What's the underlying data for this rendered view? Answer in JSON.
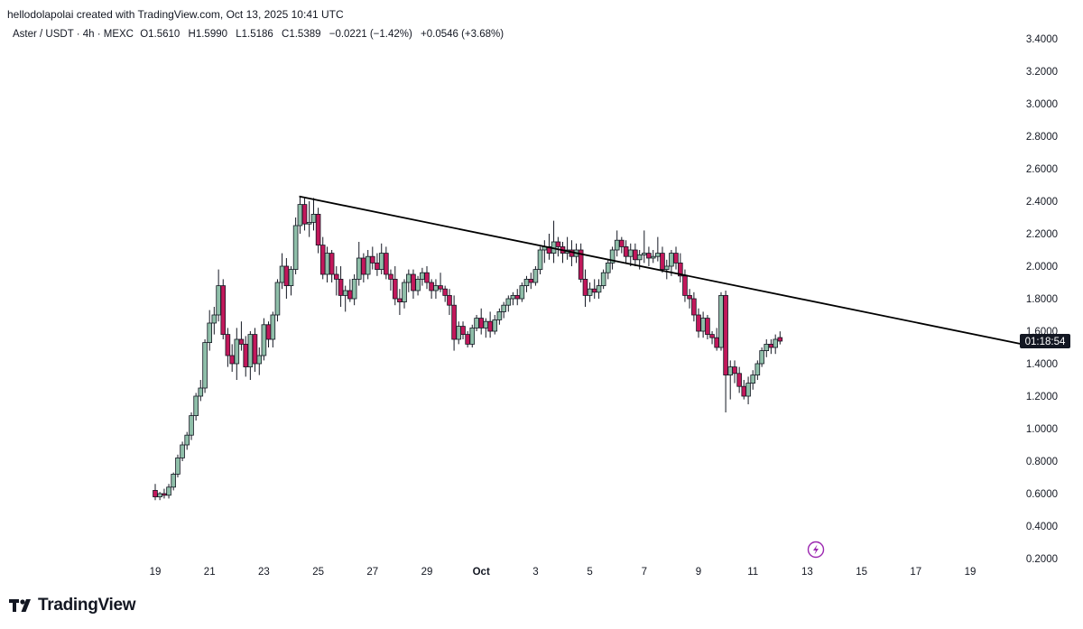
{
  "header": {
    "credit": "hellodolapolai created with TradingView.com, Oct 13, 2025 10:41 UTC"
  },
  "legend": {
    "symbol": "Aster / USDT · 4h · MEXC",
    "open_label": "O",
    "open": "1.5610",
    "high_label": "H",
    "high": "1.5990",
    "low_label": "L",
    "low": "1.5186",
    "close_label": "C",
    "close": "1.5389",
    "change": "−0.0221 (−1.42%)",
    "change2": "+0.0546 (+3.68%)"
  },
  "brand": {
    "name": "TradingView"
  },
  "countdown": "01:18:54",
  "chart_data": {
    "type": "candlestick",
    "interval": "4h",
    "ylim": [
      0.2,
      3.5
    ],
    "y_ticks": [
      "3.4000",
      "3.2000",
      "3.0000",
      "2.8000",
      "2.6000",
      "2.4000",
      "2.2000",
      "2.0000",
      "1.8000",
      "1.6000",
      "1.4000",
      "1.2000",
      "1.0000",
      "0.8000",
      "0.6000",
      "0.4000",
      "0.2000"
    ],
    "x_ticks": [
      {
        "label": "19",
        "day": 19
      },
      {
        "label": "21",
        "day": 21
      },
      {
        "label": "23",
        "day": 23
      },
      {
        "label": "25",
        "day": 25
      },
      {
        "label": "27",
        "day": 27
      },
      {
        "label": "29",
        "day": 29
      },
      {
        "label": "Oct",
        "day": 31,
        "bold": true
      },
      {
        "label": "3",
        "day": 33
      },
      {
        "label": "5",
        "day": 35
      },
      {
        "label": "7",
        "day": 37
      },
      {
        "label": "9",
        "day": 39
      },
      {
        "label": "11",
        "day": 41
      },
      {
        "label": "13",
        "day": 43
      },
      {
        "label": "15",
        "day": 45
      },
      {
        "label": "17",
        "day": 47
      },
      {
        "label": "19",
        "day": 49
      }
    ],
    "colors": {
      "up": "#8fbfa9",
      "down": "#c2185b",
      "wick": "#131722",
      "trend": "#000000"
    },
    "trendline": [
      {
        "day": 24.3,
        "price": 2.43
      },
      {
        "day": 51.5,
        "price": 1.5
      }
    ],
    "candles": [
      {
        "day": 19.0,
        "o": 0.62,
        "h": 0.66,
        "l": 0.56,
        "c": 0.58
      },
      {
        "day": 19.17,
        "o": 0.58,
        "h": 0.61,
        "l": 0.56,
        "c": 0.6
      },
      {
        "day": 19.33,
        "o": 0.6,
        "h": 0.63,
        "l": 0.57,
        "c": 0.59
      },
      {
        "day": 19.5,
        "o": 0.59,
        "h": 0.66,
        "l": 0.57,
        "c": 0.64
      },
      {
        "day": 19.67,
        "o": 0.64,
        "h": 0.73,
        "l": 0.62,
        "c": 0.72
      },
      {
        "day": 19.83,
        "o": 0.72,
        "h": 0.84,
        "l": 0.7,
        "c": 0.82
      },
      {
        "day": 20.0,
        "o": 0.82,
        "h": 0.92,
        "l": 0.8,
        "c": 0.9
      },
      {
        "day": 20.17,
        "o": 0.9,
        "h": 0.98,
        "l": 0.87,
        "c": 0.96
      },
      {
        "day": 20.33,
        "o": 0.96,
        "h": 1.1,
        "l": 0.93,
        "c": 1.08
      },
      {
        "day": 20.5,
        "o": 1.08,
        "h": 1.22,
        "l": 1.05,
        "c": 1.2
      },
      {
        "day": 20.67,
        "o": 1.2,
        "h": 1.3,
        "l": 1.17,
        "c": 1.25
      },
      {
        "day": 20.83,
        "o": 1.25,
        "h": 1.55,
        "l": 1.22,
        "c": 1.53
      },
      {
        "day": 21.0,
        "o": 1.53,
        "h": 1.73,
        "l": 1.48,
        "c": 1.65
      },
      {
        "day": 21.17,
        "o": 1.65,
        "h": 1.75,
        "l": 1.58,
        "c": 1.7
      },
      {
        "day": 21.33,
        "o": 1.7,
        "h": 1.98,
        "l": 1.66,
        "c": 1.88
      },
      {
        "day": 21.5,
        "o": 1.88,
        "h": 1.92,
        "l": 1.55,
        "c": 1.58
      },
      {
        "day": 21.67,
        "o": 1.58,
        "h": 1.62,
        "l": 1.38,
        "c": 1.45
      },
      {
        "day": 21.83,
        "o": 1.45,
        "h": 1.52,
        "l": 1.35,
        "c": 1.4
      },
      {
        "day": 22.0,
        "o": 1.4,
        "h": 1.62,
        "l": 1.3,
        "c": 1.55
      },
      {
        "day": 22.17,
        "o": 1.55,
        "h": 1.66,
        "l": 1.48,
        "c": 1.52
      },
      {
        "day": 22.33,
        "o": 1.52,
        "h": 1.57,
        "l": 1.32,
        "c": 1.38
      },
      {
        "day": 22.5,
        "o": 1.38,
        "h": 1.6,
        "l": 1.3,
        "c": 1.58
      },
      {
        "day": 22.67,
        "o": 1.58,
        "h": 1.62,
        "l": 1.35,
        "c": 1.4
      },
      {
        "day": 22.83,
        "o": 1.4,
        "h": 1.5,
        "l": 1.33,
        "c": 1.45
      },
      {
        "day": 23.0,
        "o": 1.45,
        "h": 1.68,
        "l": 1.42,
        "c": 1.64
      },
      {
        "day": 23.17,
        "o": 1.64,
        "h": 1.66,
        "l": 1.5,
        "c": 1.55
      },
      {
        "day": 23.33,
        "o": 1.55,
        "h": 1.72,
        "l": 1.5,
        "c": 1.7
      },
      {
        "day": 23.5,
        "o": 1.7,
        "h": 1.92,
        "l": 1.66,
        "c": 1.9
      },
      {
        "day": 23.67,
        "o": 1.9,
        "h": 2.08,
        "l": 1.86,
        "c": 2.0
      },
      {
        "day": 23.83,
        "o": 2.0,
        "h": 2.05,
        "l": 1.8,
        "c": 1.88
      },
      {
        "day": 24.0,
        "o": 1.88,
        "h": 2.0,
        "l": 1.82,
        "c": 1.98
      },
      {
        "day": 24.17,
        "o": 1.98,
        "h": 2.3,
        "l": 1.95,
        "c": 2.25
      },
      {
        "day": 24.33,
        "o": 2.25,
        "h": 2.43,
        "l": 2.2,
        "c": 2.38
      },
      {
        "day": 24.5,
        "o": 2.38,
        "h": 2.42,
        "l": 2.22,
        "c": 2.26
      },
      {
        "day": 24.67,
        "o": 2.26,
        "h": 2.4,
        "l": 2.18,
        "c": 2.27
      },
      {
        "day": 24.83,
        "o": 2.27,
        "h": 2.42,
        "l": 2.22,
        "c": 2.32
      },
      {
        "day": 25.0,
        "o": 2.32,
        "h": 2.36,
        "l": 2.08,
        "c": 2.13
      },
      {
        "day": 25.17,
        "o": 2.13,
        "h": 2.18,
        "l": 1.92,
        "c": 1.95
      },
      {
        "day": 25.33,
        "o": 1.95,
        "h": 2.12,
        "l": 1.9,
        "c": 2.08
      },
      {
        "day": 25.5,
        "o": 2.08,
        "h": 2.1,
        "l": 1.9,
        "c": 1.95
      },
      {
        "day": 25.67,
        "o": 1.95,
        "h": 2.0,
        "l": 1.82,
        "c": 1.92
      },
      {
        "day": 25.83,
        "o": 1.92,
        "h": 2.0,
        "l": 1.75,
        "c": 1.82
      },
      {
        "day": 26.0,
        "o": 1.82,
        "h": 1.88,
        "l": 1.72,
        "c": 1.85
      },
      {
        "day": 26.17,
        "o": 1.85,
        "h": 1.92,
        "l": 1.78,
        "c": 1.8
      },
      {
        "day": 26.33,
        "o": 1.8,
        "h": 1.95,
        "l": 1.76,
        "c": 1.92
      },
      {
        "day": 26.5,
        "o": 1.92,
        "h": 2.15,
        "l": 1.88,
        "c": 2.05
      },
      {
        "day": 26.67,
        "o": 2.05,
        "h": 2.08,
        "l": 1.9,
        "c": 1.95
      },
      {
        "day": 26.83,
        "o": 1.95,
        "h": 2.1,
        "l": 1.92,
        "c": 2.06
      },
      {
        "day": 27.0,
        "o": 2.06,
        "h": 2.12,
        "l": 1.98,
        "c": 2.02
      },
      {
        "day": 27.17,
        "o": 2.02,
        "h": 2.08,
        "l": 1.94,
        "c": 1.98
      },
      {
        "day": 27.33,
        "o": 1.98,
        "h": 2.14,
        "l": 1.95,
        "c": 2.08
      },
      {
        "day": 27.5,
        "o": 2.08,
        "h": 2.12,
        "l": 1.92,
        "c": 1.95
      },
      {
        "day": 27.67,
        "o": 1.95,
        "h": 1.98,
        "l": 1.85,
        "c": 1.92
      },
      {
        "day": 27.83,
        "o": 1.92,
        "h": 2.0,
        "l": 1.76,
        "c": 1.8
      },
      {
        "day": 28.0,
        "o": 1.8,
        "h": 1.86,
        "l": 1.7,
        "c": 1.78
      },
      {
        "day": 28.17,
        "o": 1.78,
        "h": 1.92,
        "l": 1.74,
        "c": 1.9
      },
      {
        "day": 28.33,
        "o": 1.9,
        "h": 1.98,
        "l": 1.84,
        "c": 1.95
      },
      {
        "day": 28.5,
        "o": 1.95,
        "h": 1.98,
        "l": 1.8,
        "c": 1.85
      },
      {
        "day": 28.67,
        "o": 1.85,
        "h": 1.94,
        "l": 1.82,
        "c": 1.92
      },
      {
        "day": 28.83,
        "o": 1.92,
        "h": 1.99,
        "l": 1.88,
        "c": 1.96
      },
      {
        "day": 29.0,
        "o": 1.96,
        "h": 2.0,
        "l": 1.86,
        "c": 1.9
      },
      {
        "day": 29.17,
        "o": 1.9,
        "h": 1.92,
        "l": 1.8,
        "c": 1.85
      },
      {
        "day": 29.33,
        "o": 1.85,
        "h": 1.92,
        "l": 1.8,
        "c": 1.88
      },
      {
        "day": 29.5,
        "o": 1.88,
        "h": 1.96,
        "l": 1.84,
        "c": 1.86
      },
      {
        "day": 29.67,
        "o": 1.86,
        "h": 1.88,
        "l": 1.78,
        "c": 1.82
      },
      {
        "day": 29.83,
        "o": 1.82,
        "h": 1.86,
        "l": 1.7,
        "c": 1.76
      },
      {
        "day": 30.0,
        "o": 1.76,
        "h": 1.82,
        "l": 1.48,
        "c": 1.55
      },
      {
        "day": 30.17,
        "o": 1.55,
        "h": 1.66,
        "l": 1.52,
        "c": 1.63
      },
      {
        "day": 30.33,
        "o": 1.63,
        "h": 1.66,
        "l": 1.55,
        "c": 1.58
      },
      {
        "day": 30.5,
        "o": 1.58,
        "h": 1.6,
        "l": 1.5,
        "c": 1.52
      },
      {
        "day": 30.67,
        "o": 1.52,
        "h": 1.64,
        "l": 1.5,
        "c": 1.62
      },
      {
        "day": 30.83,
        "o": 1.62,
        "h": 1.7,
        "l": 1.6,
        "c": 1.68
      },
      {
        "day": 31.0,
        "o": 1.68,
        "h": 1.74,
        "l": 1.58,
        "c": 1.62
      },
      {
        "day": 31.17,
        "o": 1.62,
        "h": 1.68,
        "l": 1.56,
        "c": 1.66
      },
      {
        "day": 31.33,
        "o": 1.66,
        "h": 1.72,
        "l": 1.56,
        "c": 1.6
      },
      {
        "day": 31.5,
        "o": 1.6,
        "h": 1.7,
        "l": 1.58,
        "c": 1.67
      },
      {
        "day": 31.67,
        "o": 1.67,
        "h": 1.74,
        "l": 1.64,
        "c": 1.72
      },
      {
        "day": 31.83,
        "o": 1.72,
        "h": 1.78,
        "l": 1.68,
        "c": 1.76
      },
      {
        "day": 32.0,
        "o": 1.76,
        "h": 1.82,
        "l": 1.72,
        "c": 1.8
      },
      {
        "day": 32.17,
        "o": 1.8,
        "h": 1.84,
        "l": 1.76,
        "c": 1.82
      },
      {
        "day": 32.33,
        "o": 1.82,
        "h": 1.86,
        "l": 1.76,
        "c": 1.8
      },
      {
        "day": 32.5,
        "o": 1.8,
        "h": 1.9,
        "l": 1.78,
        "c": 1.88
      },
      {
        "day": 32.67,
        "o": 1.88,
        "h": 1.94,
        "l": 1.84,
        "c": 1.92
      },
      {
        "day": 32.83,
        "o": 1.92,
        "h": 1.96,
        "l": 1.86,
        "c": 1.9
      },
      {
        "day": 33.0,
        "o": 1.9,
        "h": 2.0,
        "l": 1.88,
        "c": 1.98
      },
      {
        "day": 33.17,
        "o": 1.98,
        "h": 2.12,
        "l": 1.95,
        "c": 2.1
      },
      {
        "day": 33.33,
        "o": 2.1,
        "h": 2.16,
        "l": 2.02,
        "c": 2.12
      },
      {
        "day": 33.5,
        "o": 2.12,
        "h": 2.2,
        "l": 2.04,
        "c": 2.08
      },
      {
        "day": 33.67,
        "o": 2.08,
        "h": 2.28,
        "l": 2.02,
        "c": 2.15
      },
      {
        "day": 33.83,
        "o": 2.15,
        "h": 2.18,
        "l": 2.06,
        "c": 2.12
      },
      {
        "day": 34.0,
        "o": 2.12,
        "h": 2.15,
        "l": 2.02,
        "c": 2.08
      },
      {
        "day": 34.17,
        "o": 2.08,
        "h": 2.18,
        "l": 2.04,
        "c": 2.1
      },
      {
        "day": 34.33,
        "o": 2.1,
        "h": 2.16,
        "l": 2.0,
        "c": 2.06
      },
      {
        "day": 34.5,
        "o": 2.06,
        "h": 2.14,
        "l": 2.02,
        "c": 2.1
      },
      {
        "day": 34.67,
        "o": 2.1,
        "h": 2.14,
        "l": 1.9,
        "c": 1.92
      },
      {
        "day": 34.83,
        "o": 1.92,
        "h": 1.98,
        "l": 1.75,
        "c": 1.82
      },
      {
        "day": 35.0,
        "o": 1.82,
        "h": 1.9,
        "l": 1.78,
        "c": 1.86
      },
      {
        "day": 35.17,
        "o": 1.86,
        "h": 1.92,
        "l": 1.8,
        "c": 1.84
      },
      {
        "day": 35.33,
        "o": 1.84,
        "h": 1.92,
        "l": 1.8,
        "c": 1.88
      },
      {
        "day": 35.5,
        "o": 1.88,
        "h": 1.98,
        "l": 1.86,
        "c": 1.96
      },
      {
        "day": 35.67,
        "o": 1.96,
        "h": 2.04,
        "l": 1.92,
        "c": 2.02
      },
      {
        "day": 35.83,
        "o": 2.02,
        "h": 2.12,
        "l": 1.98,
        "c": 2.1
      },
      {
        "day": 36.0,
        "o": 2.1,
        "h": 2.22,
        "l": 2.06,
        "c": 2.16
      },
      {
        "day": 36.17,
        "o": 2.16,
        "h": 2.18,
        "l": 2.08,
        "c": 2.12
      },
      {
        "day": 36.33,
        "o": 2.12,
        "h": 2.16,
        "l": 2.02,
        "c": 2.06
      },
      {
        "day": 36.5,
        "o": 2.06,
        "h": 2.14,
        "l": 2.0,
        "c": 2.1
      },
      {
        "day": 36.67,
        "o": 2.1,
        "h": 2.14,
        "l": 2.0,
        "c": 2.04
      },
      {
        "day": 36.83,
        "o": 2.04,
        "h": 2.1,
        "l": 1.98,
        "c": 2.07
      },
      {
        "day": 37.0,
        "o": 2.07,
        "h": 2.22,
        "l": 2.02,
        "c": 2.08
      },
      {
        "day": 37.17,
        "o": 2.08,
        "h": 2.12,
        "l": 2.0,
        "c": 2.05
      },
      {
        "day": 37.33,
        "o": 2.05,
        "h": 2.1,
        "l": 2.02,
        "c": 2.06
      },
      {
        "day": 37.5,
        "o": 2.06,
        "h": 2.18,
        "l": 2.03,
        "c": 2.08
      },
      {
        "day": 37.67,
        "o": 2.08,
        "h": 2.12,
        "l": 1.96,
        "c": 1.98
      },
      {
        "day": 37.83,
        "o": 1.98,
        "h": 2.04,
        "l": 1.92,
        "c": 2.0
      },
      {
        "day": 38.0,
        "o": 2.0,
        "h": 2.1,
        "l": 1.94,
        "c": 2.08
      },
      {
        "day": 38.17,
        "o": 2.08,
        "h": 2.12,
        "l": 1.98,
        "c": 2.02
      },
      {
        "day": 38.33,
        "o": 2.02,
        "h": 2.08,
        "l": 1.9,
        "c": 1.94
      },
      {
        "day": 38.5,
        "o": 1.94,
        "h": 1.98,
        "l": 1.78,
        "c": 1.82
      },
      {
        "day": 38.67,
        "o": 1.82,
        "h": 1.86,
        "l": 1.74,
        "c": 1.8
      },
      {
        "day": 38.83,
        "o": 1.8,
        "h": 1.84,
        "l": 1.66,
        "c": 1.7
      },
      {
        "day": 39.0,
        "o": 1.7,
        "h": 1.74,
        "l": 1.56,
        "c": 1.6
      },
      {
        "day": 39.17,
        "o": 1.6,
        "h": 1.72,
        "l": 1.56,
        "c": 1.68
      },
      {
        "day": 39.33,
        "o": 1.68,
        "h": 1.7,
        "l": 1.55,
        "c": 1.58
      },
      {
        "day": 39.5,
        "o": 1.58,
        "h": 1.6,
        "l": 1.52,
        "c": 1.56
      },
      {
        "day": 39.67,
        "o": 1.56,
        "h": 1.62,
        "l": 1.48,
        "c": 1.5
      },
      {
        "day": 39.83,
        "o": 1.5,
        "h": 1.84,
        "l": 1.48,
        "c": 1.82
      },
      {
        "day": 40.0,
        "o": 1.82,
        "h": 1.85,
        "l": 1.1,
        "c": 1.33
      },
      {
        "day": 40.17,
        "o": 1.33,
        "h": 1.42,
        "l": 1.18,
        "c": 1.38
      },
      {
        "day": 40.33,
        "o": 1.38,
        "h": 1.42,
        "l": 1.28,
        "c": 1.34
      },
      {
        "day": 40.5,
        "o": 1.34,
        "h": 1.38,
        "l": 1.22,
        "c": 1.26
      },
      {
        "day": 40.67,
        "o": 1.26,
        "h": 1.3,
        "l": 1.18,
        "c": 1.2
      },
      {
        "day": 40.83,
        "o": 1.2,
        "h": 1.32,
        "l": 1.15,
        "c": 1.28
      },
      {
        "day": 41.0,
        "o": 1.28,
        "h": 1.36,
        "l": 1.24,
        "c": 1.33
      },
      {
        "day": 41.17,
        "o": 1.33,
        "h": 1.42,
        "l": 1.3,
        "c": 1.4
      },
      {
        "day": 41.33,
        "o": 1.4,
        "h": 1.5,
        "l": 1.38,
        "c": 1.48
      },
      {
        "day": 41.5,
        "o": 1.48,
        "h": 1.55,
        "l": 1.44,
        "c": 1.52
      },
      {
        "day": 41.67,
        "o": 1.52,
        "h": 1.55,
        "l": 1.46,
        "c": 1.5
      },
      {
        "day": 41.83,
        "o": 1.5,
        "h": 1.58,
        "l": 1.46,
        "c": 1.55
      },
      {
        "day": 42.0,
        "o": 1.561,
        "h": 1.599,
        "l": 1.5186,
        "c": 1.5389
      }
    ]
  }
}
